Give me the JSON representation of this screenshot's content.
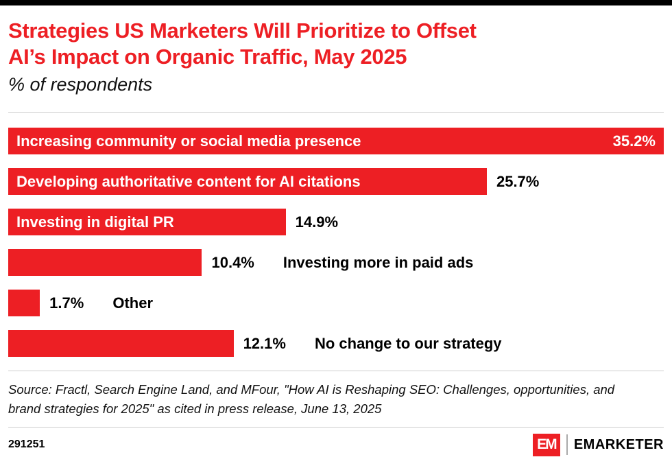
{
  "header": {
    "title_line1": "Strategies US Marketers Will Prioritize to Offset",
    "title_line2": "AI’s Impact on Organic Traffic, May 2025",
    "subtitle": "% of respondents"
  },
  "chart_data": {
    "type": "bar",
    "orientation": "horizontal",
    "title": "Strategies US Marketers Will Prioritize to Offset AI’s Impact on Organic Traffic, May 2025",
    "subtitle": "% of respondents",
    "xlabel": "",
    "ylabel": "",
    "axis_max": 35.2,
    "grid": false,
    "legend": "none",
    "bar_color": "#ED1F24",
    "categories": [
      "Increasing community or social media presence",
      "Developing authoritative content for AI citations",
      "Investing in digital PR",
      "Investing more in paid ads",
      "Other",
      "No change to our strategy"
    ],
    "values": [
      35.2,
      25.7,
      14.9,
      10.4,
      1.7,
      12.1
    ],
    "rows": [
      {
        "label": "Increasing community or social media presence",
        "value": 35.2,
        "value_label": "35.2%",
        "label_inside": true,
        "value_inside": true
      },
      {
        "label": "Developing authoritative content for AI citations",
        "value": 25.7,
        "value_label": "25.7%",
        "label_inside": true,
        "value_inside": false
      },
      {
        "label": "Investing in digital PR",
        "value": 14.9,
        "value_label": "14.9%",
        "label_inside": true,
        "value_inside": false
      },
      {
        "label": "Investing more in paid ads",
        "value": 10.4,
        "value_label": "10.4%",
        "label_inside": false,
        "value_inside": false
      },
      {
        "label": "Other",
        "value": 1.7,
        "value_label": "1.7%",
        "label_inside": false,
        "value_inside": false
      },
      {
        "label": "No change to our strategy",
        "value": 12.1,
        "value_label": "12.1%",
        "label_inside": false,
        "value_inside": false
      }
    ]
  },
  "footer": {
    "source": "Source: Fractl, Search Engine Land, and MFour, \"How AI is Reshaping SEO: Challenges, opportunities, and brand strategies for 2025\" as cited in press release, June 13, 2025",
    "chart_id": "291251",
    "logo_mark": "EM",
    "logo_text": "EMARKETER"
  }
}
